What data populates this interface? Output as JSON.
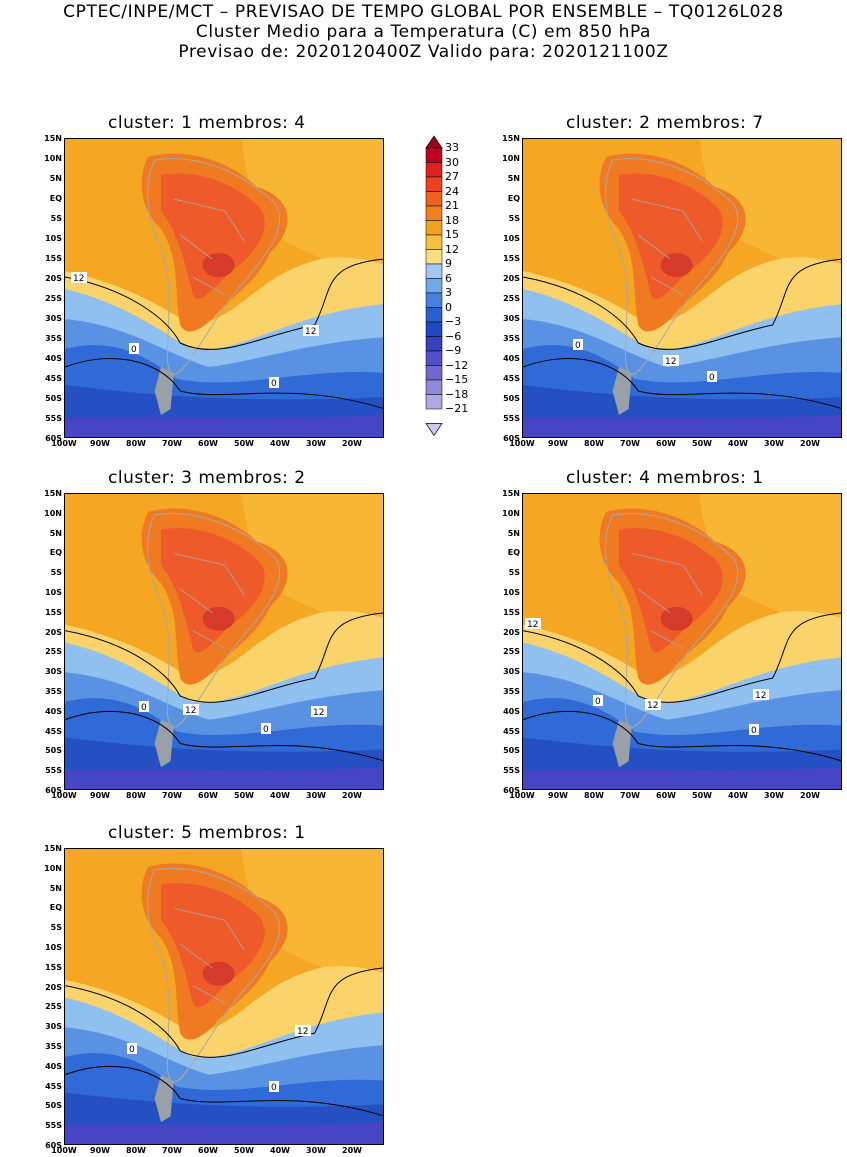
{
  "header": {
    "line1": "CPTEC/INPE/MCT – PREVISAO DE TEMPO GLOBAL POR ENSEMBLE – TQ0126L028",
    "line2": "Cluster Medio para a Temperatura (C) em 850 hPa",
    "line3": "Previsao de: 2020120400Z   Valido para: 2020121100Z"
  },
  "axes": {
    "lat_labels": [
      "15N",
      "10N",
      "5N",
      "EQ",
      "5S",
      "10S",
      "15S",
      "20S",
      "25S",
      "30S",
      "35S",
      "40S",
      "45S",
      "50S",
      "55S",
      "60S"
    ],
    "lon_labels": [
      "100W",
      "90W",
      "80W",
      "70W",
      "60W",
      "50W",
      "40W",
      "30W",
      "20W"
    ]
  },
  "colorbar": {
    "levels": [
      "33",
      "30",
      "27",
      "24",
      "21",
      "18",
      "15",
      "12",
      "9",
      "6",
      "3",
      "0",
      "−3",
      "−6",
      "−9",
      "−12",
      "−15",
      "−18",
      "−21"
    ],
    "colors": [
      "#a00020",
      "#c00020",
      "#e02020",
      "#f04020",
      "#f06020",
      "#f08020",
      "#f4a020",
      "#f8c040",
      "#fce080",
      "#a0c8f0",
      "#70a8e8",
      "#4880e0",
      "#2860d0",
      "#2048c0",
      "#3840c0",
      "#5050c8",
      "#7068d0",
      "#9088d8",
      "#b0a8e0",
      "#d0c8f0"
    ]
  },
  "panels": [
    {
      "title": "cluster: 1   membros: 4",
      "contours": [
        "12",
        "12",
        "0",
        "0"
      ]
    },
    {
      "title": "cluster: 2   membros: 7",
      "contours": [
        "0",
        "12",
        "0"
      ]
    },
    {
      "title": "cluster: 3   membros: 2",
      "contours": [
        "0",
        "12",
        "12",
        "0"
      ]
    },
    {
      "title": "cluster: 4   membros: 1",
      "contours": [
        "12",
        "0",
        "12",
        "12",
        "0"
      ]
    },
    {
      "title": "cluster: 5   membros: 1",
      "contours": [
        "12",
        "0",
        "0"
      ]
    }
  ]
}
